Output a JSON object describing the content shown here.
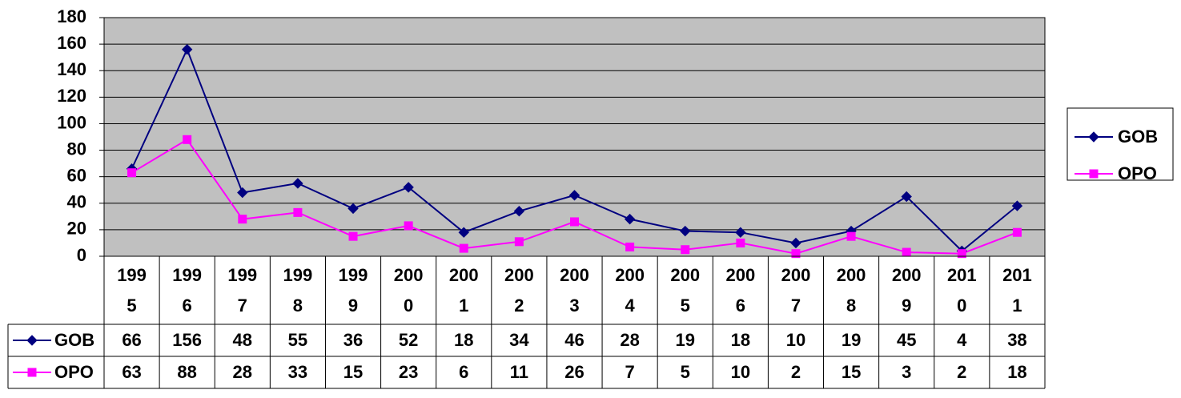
{
  "chart_data": {
    "type": "line",
    "categories": [
      "1995",
      "1996",
      "1997",
      "1998",
      "1999",
      "2000",
      "2001",
      "2002",
      "2003",
      "2004",
      "2005",
      "2006",
      "2007",
      "2008",
      "2009",
      "2010",
      "2011"
    ],
    "series": [
      {
        "name": "GOB",
        "color": "#000080",
        "values": [
          66,
          156,
          48,
          55,
          36,
          52,
          18,
          34,
          46,
          28,
          19,
          18,
          10,
          19,
          45,
          4,
          38
        ]
      },
      {
        "name": "OPO",
        "color": "#ff00ff",
        "values": [
          63,
          88,
          28,
          33,
          15,
          23,
          6,
          11,
          26,
          7,
          5,
          10,
          2,
          15,
          3,
          2,
          18
        ]
      }
    ],
    "ylim": [
      0,
      180
    ],
    "yticks": [
      0,
      20,
      40,
      60,
      80,
      100,
      120,
      140,
      160,
      180
    ],
    "grid": true,
    "legend": "right"
  }
}
